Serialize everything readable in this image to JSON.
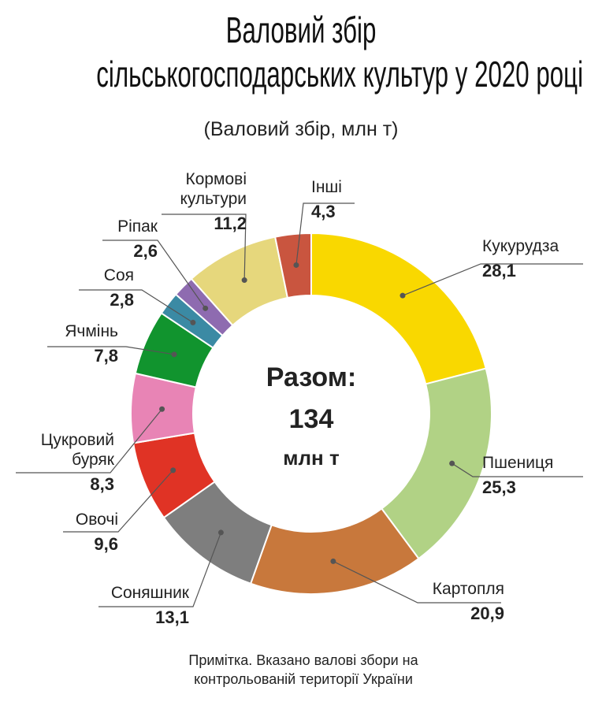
{
  "chart_data": {
    "type": "donut",
    "title": [
      "Валовий збір",
      "сільськогосподарських культур у 2020 році"
    ],
    "subtitle": "(Валовий збір, млн т)",
    "center_label": "Разом:",
    "total": 134,
    "center_unit": "млн т",
    "note": "Примітка. Вказано валові збори на контрольованій території України",
    "categories": [
      "Кукурудза",
      "Пшениця",
      "Картопля",
      "Соняшник",
      "Овочі",
      "Цукровий буряк",
      "Ячмінь",
      "Соя",
      "Ріпак",
      "Кормові культури",
      "Інші"
    ],
    "values": [
      28.1,
      25.3,
      20.9,
      13.1,
      9.6,
      8.3,
      7.8,
      2.8,
      2.6,
      11.2,
      4.3
    ],
    "value_labels": [
      "28,1",
      "25,3",
      "20,9",
      "13,1",
      "9,6",
      "8,3",
      "7,8",
      "2,8",
      "2,6",
      "11,2",
      "4,3"
    ],
    "colors": [
      "#f9d800",
      "#b1d285",
      "#c8783c",
      "#7e7e7e",
      "#e03325",
      "#e884b5",
      "#11942e",
      "#3b8aa4",
      "#8e6bb0",
      "#e6d77c",
      "#c9553f"
    ]
  }
}
